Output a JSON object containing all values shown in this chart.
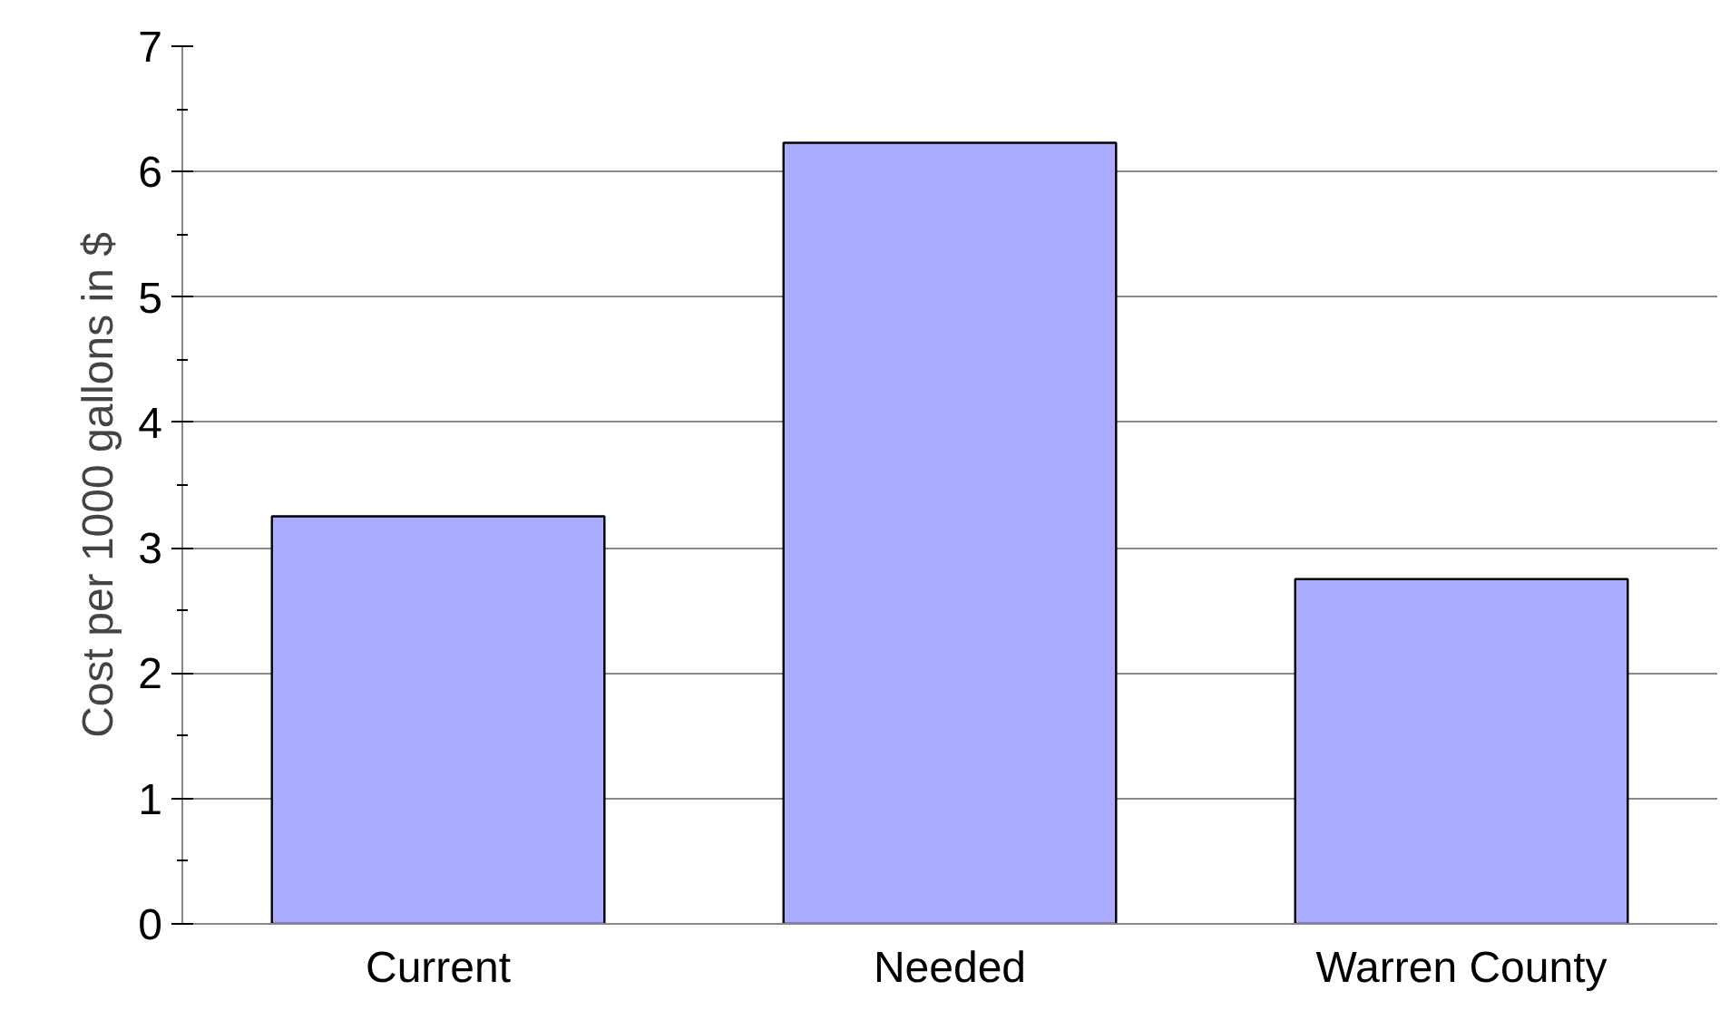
{
  "chart_data": {
    "type": "bar",
    "ylabel": "Cost per 1000 gallons in $",
    "categories": [
      "Current",
      "Needed",
      "Warren County"
    ],
    "values": [
      3.25,
      6.23,
      2.75
    ],
    "color": "#aaaaff",
    "ylim": [
      0,
      7
    ],
    "yticks": [
      0,
      1,
      2,
      3,
      4,
      5,
      6,
      7
    ],
    "grid": "y"
  }
}
